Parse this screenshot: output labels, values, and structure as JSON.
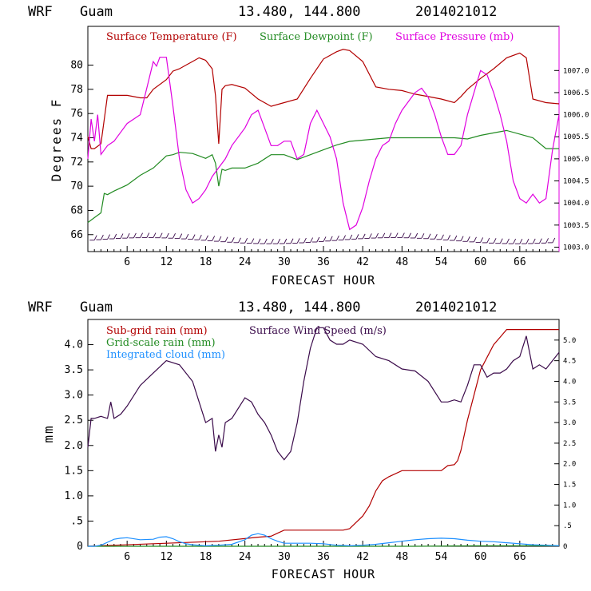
{
  "panels": [
    {
      "id": "top",
      "header": {
        "model": "WRF",
        "site": "Guam",
        "coords": "13.480, 144.800",
        "init": "2014021012"
      },
      "ylabel": "Degrees F",
      "xlabel": "FORECAST HOUR",
      "xticks": [
        "6",
        "12",
        "18",
        "24",
        "30",
        "36",
        "42",
        "48",
        "54",
        "60",
        "66"
      ],
      "yticks": [
        "66",
        "68",
        "70",
        "72",
        "74",
        "76",
        "78",
        "80"
      ],
      "rticks": [
        "1003.0",
        "1003.5",
        "1004.0",
        "1004.5",
        "1005.0",
        "1005.5",
        "1006.0",
        "1006.5",
        "1007.0"
      ],
      "legend": [
        {
          "label": "Surface Temperature (F)",
          "color": "#b20000"
        },
        {
          "label": "Surface Dewpoint (F)",
          "color": "#228b22"
        },
        {
          "label": "Surface Pressure (mb)",
          "color": "#e000e0"
        }
      ]
    },
    {
      "id": "bottom",
      "header": {
        "model": "WRF",
        "site": "Guam",
        "coords": "13.480, 144.800",
        "init": "2014021012"
      },
      "ylabel": "mm",
      "xlabel": "FORECAST HOUR",
      "xticks": [
        "6",
        "12",
        "18",
        "24",
        "30",
        "36",
        "42",
        "48",
        "54",
        "60",
        "66"
      ],
      "yticks": [
        "0",
        ".5",
        "1.0",
        "1.5",
        "2.0",
        "2.5",
        "3.0",
        "3.5",
        "4.0"
      ],
      "rticks": [
        "0",
        ".5",
        "1.0",
        "1.5",
        "2.0",
        "2.5",
        "3.0",
        "3.5",
        "4.0",
        "4.5",
        "5.0"
      ],
      "legend": [
        {
          "label": "Sub-grid rain (mm)",
          "color": "#b20000"
        },
        {
          "label": "Surface Wind Speed (m/s)",
          "color": "#3a0a4a"
        },
        {
          "label": "Grid-scale rain (mm)",
          "color": "#228b22"
        },
        {
          "label": "Integrated cloud (mm)",
          "color": "#1e90ff"
        }
      ]
    }
  ],
  "chart_data": [
    {
      "type": "line",
      "xlim": [
        0,
        72
      ],
      "ylim": [
        64.6,
        83.2
      ],
      "y2lim": [
        1002.9,
        1008.0
      ],
      "series": [
        {
          "name": "Surface Temperature (F)",
          "axis": "left",
          "color": "#b20000",
          "x": [
            0,
            0.5,
            1,
            2,
            3,
            4,
            6,
            8,
            9,
            10,
            12,
            13,
            14,
            15,
            16,
            17,
            18,
            19,
            19.5,
            20,
            20.5,
            21,
            22,
            24,
            26,
            28,
            30,
            32,
            34,
            36,
            38,
            39,
            40,
            42,
            44,
            46,
            48,
            50,
            52,
            54,
            56,
            57,
            58,
            60,
            62,
            64,
            66,
            67,
            68,
            70,
            72
          ],
          "y": [
            74.1,
            73.1,
            73.1,
            73.5,
            77.5,
            77.5,
            77.5,
            77.3,
            77.3,
            78.0,
            78.8,
            79.5,
            79.7,
            80.0,
            80.3,
            80.6,
            80.4,
            79.7,
            77.5,
            73.5,
            78.0,
            78.3,
            78.4,
            78.1,
            77.2,
            76.6,
            76.9,
            77.2,
            78.9,
            80.5,
            81.1,
            81.3,
            81.2,
            80.3,
            78.2,
            78.0,
            77.9,
            77.6,
            77.4,
            77.2,
            76.9,
            77.4,
            78.0,
            78.9,
            79.7,
            80.6,
            81.0,
            80.6,
            77.2,
            76.9,
            76.8
          ]
        },
        {
          "name": "Surface Dewpoint (F)",
          "axis": "left",
          "color": "#228b22",
          "x": [
            0,
            1,
            2,
            2.5,
            3,
            4,
            6,
            8,
            10,
            12,
            13,
            14,
            16,
            17,
            18,
            19,
            19.5,
            20,
            20.5,
            21,
            22,
            24,
            26,
            28,
            30,
            32,
            34,
            36,
            38,
            40,
            42,
            44,
            46,
            48,
            50,
            52,
            54,
            56,
            58,
            60,
            62,
            64,
            66,
            68,
            70,
            72
          ],
          "y": [
            67.0,
            67.4,
            67.8,
            69.4,
            69.3,
            69.6,
            70.1,
            70.9,
            71.5,
            72.5,
            72.6,
            72.8,
            72.7,
            72.5,
            72.3,
            72.6,
            71.9,
            70.0,
            71.4,
            71.3,
            71.5,
            71.5,
            71.9,
            72.6,
            72.6,
            72.2,
            72.6,
            73.0,
            73.4,
            73.7,
            73.8,
            73.9,
            74.0,
            74.0,
            74.0,
            74.0,
            74.0,
            74.0,
            73.9,
            74.2,
            74.4,
            74.6,
            74.3,
            74.0,
            73.1,
            73.1
          ]
        },
        {
          "name": "Surface Pressure (mb)",
          "axis": "right",
          "color": "#e000e0",
          "x": [
            0,
            0.5,
            1,
            1.5,
            2,
            2.5,
            3,
            4,
            5,
            6,
            7,
            8,
            9,
            10,
            10.5,
            11,
            12,
            13,
            14,
            15,
            16,
            17,
            18,
            19,
            20,
            21,
            22,
            24,
            25,
            26,
            27,
            28,
            29,
            30,
            31,
            32,
            33,
            34,
            35,
            36,
            37,
            38,
            39,
            40,
            41,
            42,
            43,
            44,
            45,
            46,
            47,
            48,
            49,
            50,
            51,
            52,
            53,
            54,
            55,
            56,
            57,
            58,
            59,
            60,
            61,
            62,
            63,
            64,
            65,
            66,
            67,
            68,
            69,
            70,
            71,
            72
          ],
          "y": [
            1005.0,
            1005.9,
            1005.4,
            1006.0,
            1005.1,
            1005.2,
            1005.3,
            1005.4,
            1005.6,
            1005.8,
            1005.9,
            1006.0,
            1006.6,
            1007.2,
            1007.1,
            1007.3,
            1007.3,
            1006.2,
            1005.0,
            1004.3,
            1004.0,
            1004.1,
            1004.3,
            1004.6,
            1004.8,
            1005.0,
            1005.3,
            1005.7,
            1006.0,
            1006.1,
            1005.7,
            1005.3,
            1005.3,
            1005.4,
            1005.4,
            1005.0,
            1005.1,
            1005.8,
            1006.1,
            1005.8,
            1005.5,
            1005.0,
            1004.0,
            1003.4,
            1003.5,
            1003.9,
            1004.5,
            1005.0,
            1005.3,
            1005.4,
            1005.8,
            1006.1,
            1006.3,
            1006.5,
            1006.6,
            1006.4,
            1006.0,
            1005.5,
            1005.1,
            1005.1,
            1005.3,
            1006.0,
            1006.5,
            1007.0,
            1006.9,
            1006.5,
            1006.0,
            1005.4,
            1004.5,
            1004.1,
            1004.0,
            1004.2,
            1004.0,
            1004.1,
            1005.2,
            1006.0
          ]
        }
      ]
    },
    {
      "type": "line",
      "xlim": [
        0,
        72
      ],
      "ylim": [
        0,
        4.5
      ],
      "y2lim": [
        0,
        5.5
      ],
      "series": [
        {
          "name": "Sub-grid rain (mm)",
          "axis": "left",
          "color": "#b20000",
          "x": [
            0,
            10,
            20,
            26,
            28,
            29,
            30,
            39,
            40,
            42,
            43,
            44,
            45,
            46,
            48,
            50,
            52,
            54,
            55,
            56,
            56.5,
            57,
            58,
            59,
            60,
            61,
            62,
            63,
            64,
            66,
            68,
            70,
            72
          ],
          "y": [
            0.0,
            0.05,
            0.1,
            0.18,
            0.2,
            0.26,
            0.32,
            0.32,
            0.35,
            0.6,
            0.8,
            1.1,
            1.3,
            1.38,
            1.5,
            1.5,
            1.5,
            1.5,
            1.6,
            1.62,
            1.7,
            1.9,
            2.5,
            3.0,
            3.5,
            3.75,
            4.0,
            4.15,
            4.3,
            4.3,
            4.3,
            4.3,
            4.3
          ]
        },
        {
          "name": "Surface Wind Speed (m/s)",
          "axis": "right",
          "color": "#3a0a4a",
          "x": [
            0,
            0.5,
            1,
            2,
            3,
            3.5,
            4,
            5,
            6,
            8,
            10,
            12,
            14,
            16,
            17,
            18,
            19,
            19.5,
            20,
            20.5,
            21,
            22,
            24,
            25,
            26,
            27,
            28,
            29,
            30,
            31,
            32,
            33,
            34,
            35,
            36,
            37,
            38,
            39,
            40,
            42,
            44,
            46,
            48,
            50,
            52,
            54,
            55,
            56,
            57,
            58,
            59,
            60,
            61,
            62,
            63,
            64,
            65,
            66,
            67,
            68,
            69,
            70,
            71,
            72
          ],
          "y": [
            2.4,
            3.1,
            3.1,
            3.15,
            3.1,
            3.5,
            3.1,
            3.2,
            3.4,
            3.9,
            4.2,
            4.5,
            4.4,
            4.0,
            3.5,
            3.0,
            3.1,
            2.3,
            2.7,
            2.4,
            3.0,
            3.1,
            3.6,
            3.5,
            3.2,
            3.0,
            2.7,
            2.3,
            2.1,
            2.3,
            3.0,
            4.0,
            4.8,
            5.3,
            5.3,
            5.0,
            4.9,
            4.9,
            5.0,
            4.9,
            4.6,
            4.5,
            4.3,
            4.25,
            4.0,
            3.5,
            3.5,
            3.55,
            3.5,
            3.9,
            4.4,
            4.4,
            4.1,
            4.2,
            4.2,
            4.3,
            4.5,
            4.6,
            5.1,
            4.3,
            4.4,
            4.3,
            4.5,
            4.7
          ]
        },
        {
          "name": "Grid-scale rain (mm)",
          "axis": "left",
          "color": "#228b22",
          "x": [
            0,
            24,
            30,
            40,
            50,
            60,
            66,
            72
          ],
          "y": [
            0.0,
            0.0,
            0.0,
            0.0,
            0.0,
            0.01,
            0.01,
            0.01
          ]
        },
        {
          "name": "Integrated cloud (mm)",
          "axis": "left",
          "color": "#1e90ff",
          "x": [
            0,
            1,
            2,
            3,
            4,
            5,
            6,
            8,
            10,
            11,
            12,
            13,
            14,
            15,
            16,
            18,
            20,
            22,
            24,
            25,
            26,
            27,
            28,
            29,
            30,
            32,
            34,
            36,
            38,
            40,
            42,
            44,
            46,
            48,
            50,
            52,
            54,
            56,
            58,
            60,
            62,
            64,
            66,
            68,
            70,
            72
          ],
          "y": [
            0.0,
            0.0,
            0.02,
            0.08,
            0.14,
            0.16,
            0.17,
            0.13,
            0.14,
            0.18,
            0.19,
            0.15,
            0.09,
            0.05,
            0.03,
            0.01,
            0.02,
            0.04,
            0.13,
            0.22,
            0.25,
            0.22,
            0.15,
            0.1,
            0.06,
            0.06,
            0.06,
            0.05,
            0.02,
            0.01,
            0.02,
            0.04,
            0.07,
            0.1,
            0.13,
            0.15,
            0.16,
            0.15,
            0.12,
            0.1,
            0.09,
            0.07,
            0.05,
            0.03,
            0.02,
            0.01
          ]
        }
      ]
    }
  ]
}
